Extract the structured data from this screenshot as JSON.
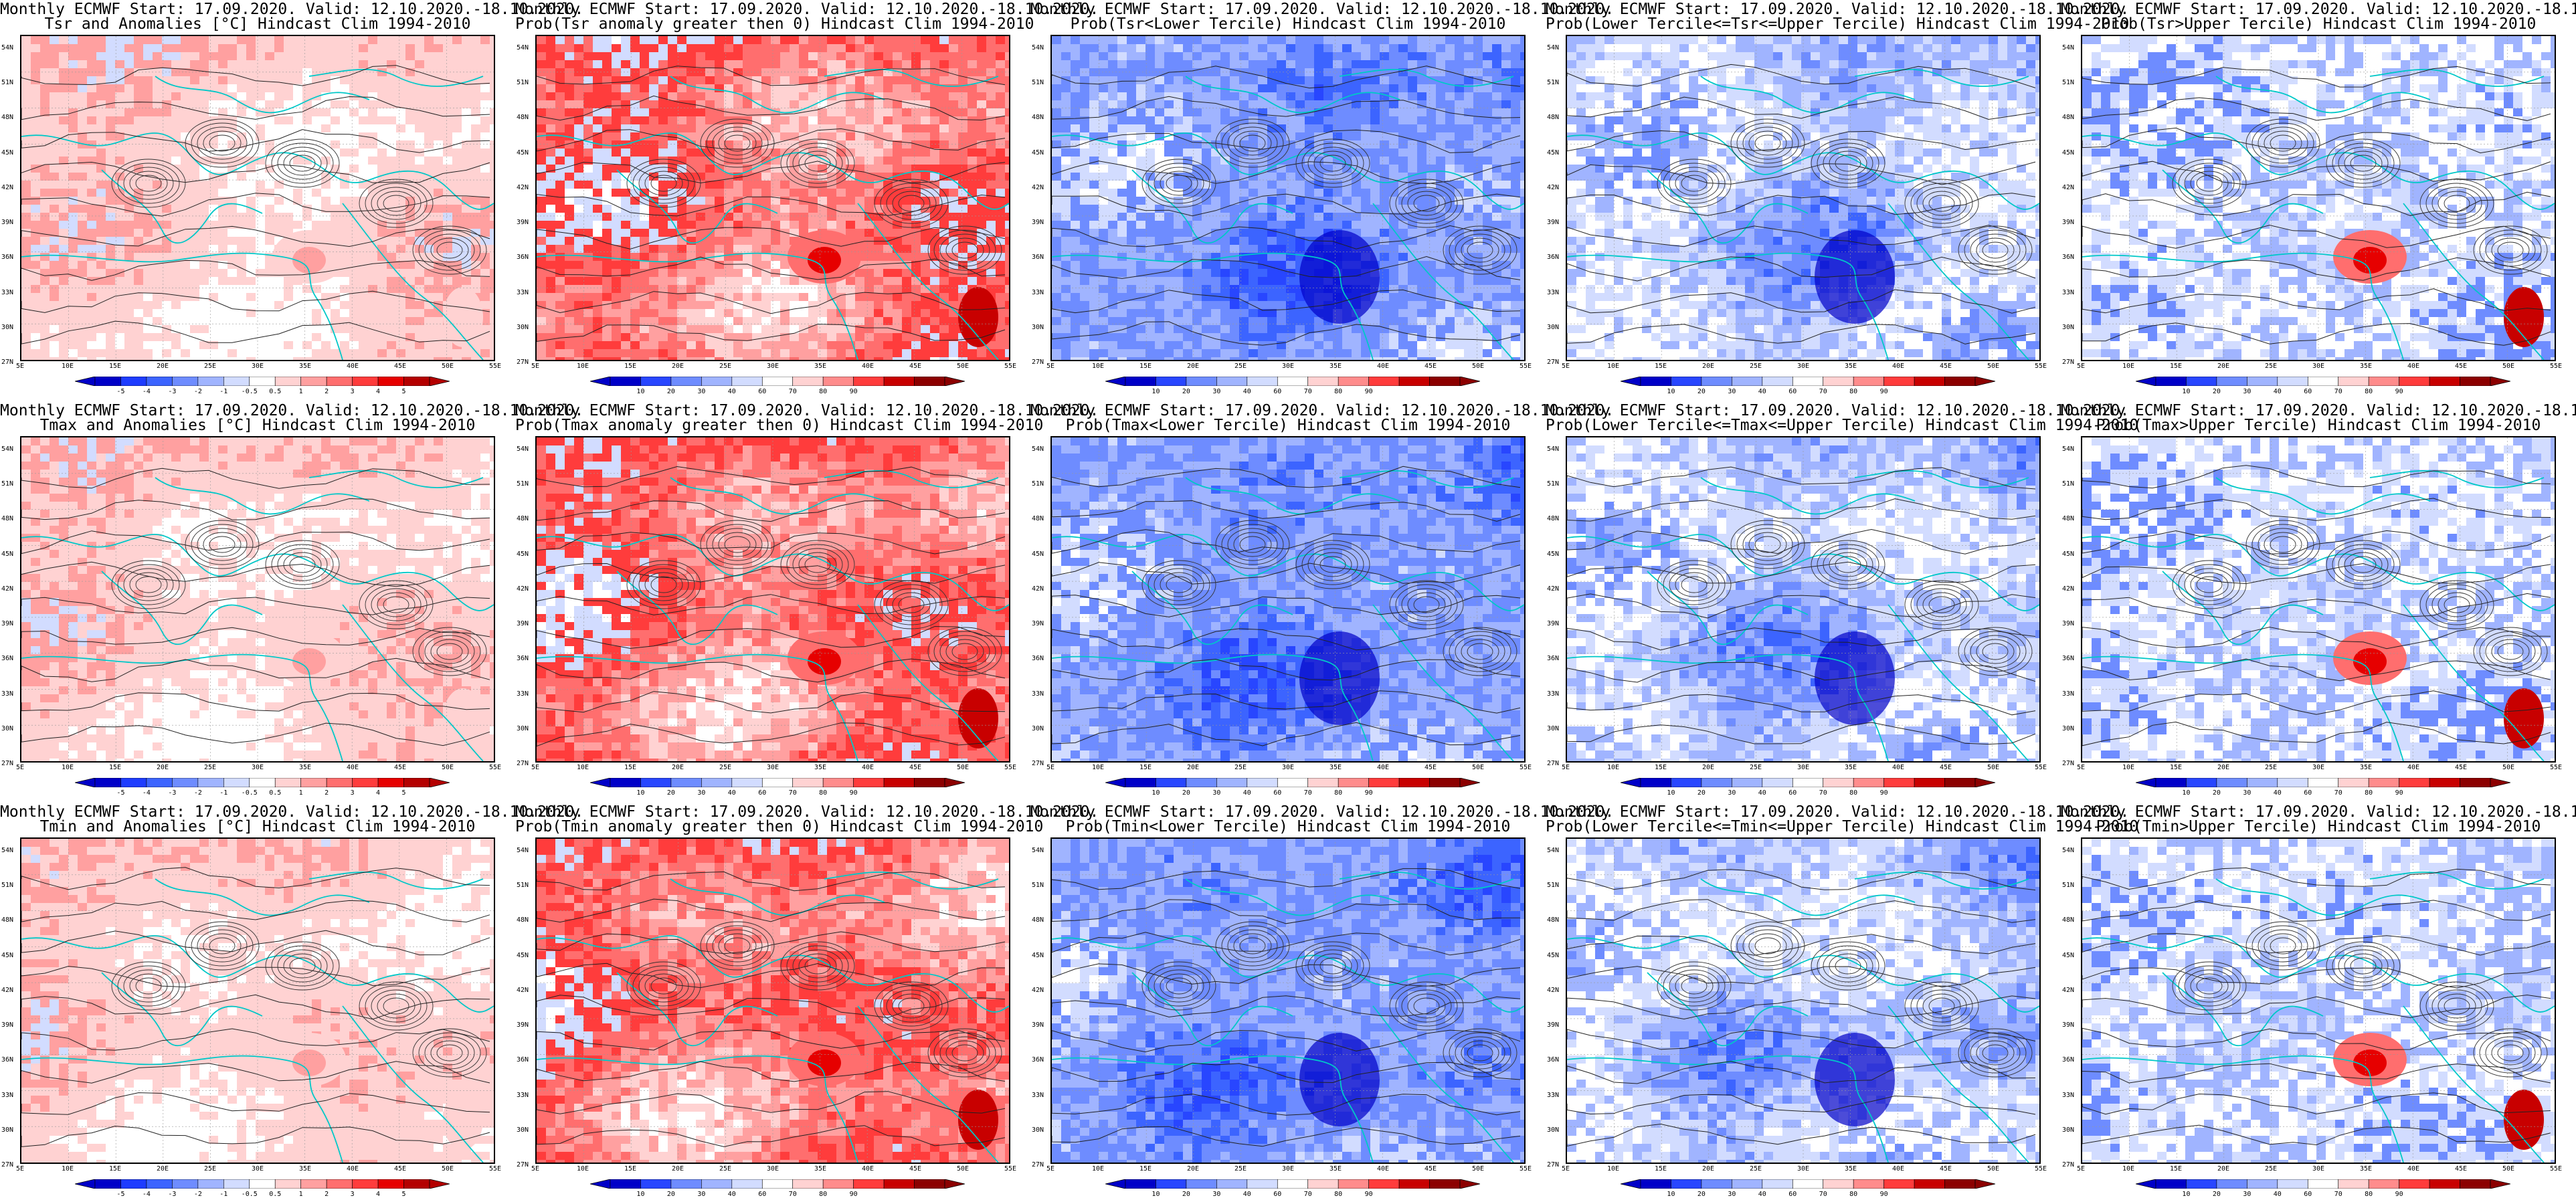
{
  "header_line": "Monthly ECMWF Start: 17.09.2020. Valid: 12.10.2020.-18.10.2020.",
  "lat_labels": [
    "54N",
    "51N",
    "48N",
    "45N",
    "42N",
    "39N",
    "36N",
    "33N",
    "30N",
    "27N"
  ],
  "lon_labels": [
    "5E",
    "10E",
    "15E",
    "20E",
    "25E",
    "30E",
    "35E",
    "40E",
    "45E",
    "50E",
    "55E"
  ],
  "anomaly_colorbar": {
    "labels": [
      "-5",
      "-4",
      "-3",
      "-2",
      "-1",
      "-0.5",
      "0.5",
      "1",
      "2",
      "3",
      "4",
      "5"
    ],
    "colors": [
      "#0000c8",
      "#1e3cff",
      "#3c64ff",
      "#6e8cff",
      "#a0b4ff",
      "#d2dcff",
      "#ffffff",
      "#ffd2d2",
      "#ffa0a0",
      "#ff6e6e",
      "#ff3c3c",
      "#e60000",
      "#b40000"
    ]
  },
  "prob_colorbar": {
    "labels": [
      "10",
      "20",
      "30",
      "40",
      "60",
      "70",
      "80",
      "90"
    ],
    "colors": [
      "#0000c8",
      "#2846ff",
      "#6e8cff",
      "#a0b4ff",
      "#d2dcff",
      "#ffffff",
      "#ffd2d2",
      "#ff8c8c",
      "#ff3c3c",
      "#c80000",
      "#8c0000"
    ]
  },
  "rows": [
    {
      "variable": "Tsr",
      "panels": [
        {
          "title": "Tsr and Anomalies [°C] Hindcast Clim 1994-2010",
          "kind": "anomaly",
          "bias": 0.15
        },
        {
          "title": "Prob(Tsr anomaly greater then 0) Hindcast Clim 1994-2010",
          "kind": "prob-red",
          "bias": 0.45
        },
        {
          "title": "Prob(Tsr<Lower Tercile) Hindcast Clim 1994-2010",
          "kind": "prob-blue",
          "bias": 0.75
        },
        {
          "title": "Prob(Lower Tercile<=Tsr<=Upper Tercile) Hindcast Clim 1994-2010",
          "kind": "prob-blue",
          "bias": 0.55
        },
        {
          "title": "Prob(Tsr>Upper Tercile) Hindcast Clim 1994-2010",
          "kind": "prob-mixed",
          "bias": 0.35
        }
      ]
    },
    {
      "variable": "Tmax",
      "panels": [
        {
          "title": "Tmax and Anomalies [°C] Hindcast Clim 1994-2010",
          "kind": "anomaly",
          "bias": 0.2
        },
        {
          "title": "Prob(Tmax anomaly greater then 0) Hindcast Clim 1994-2010",
          "kind": "prob-red",
          "bias": 0.5
        },
        {
          "title": "Prob(Tmax<Lower Tercile) Hindcast Clim 1994-2010",
          "kind": "prob-blue",
          "bias": 0.75
        },
        {
          "title": "Prob(Lower Tercile<=Tmax<=Upper Tercile) Hindcast Clim 1994-2010",
          "kind": "prob-blue",
          "bias": 0.55
        },
        {
          "title": "Prob(Tmax>Upper Tercile) Hindcast Clim 1994-2010",
          "kind": "prob-mixed",
          "bias": 0.35
        }
      ]
    },
    {
      "variable": "Tmin",
      "panels": [
        {
          "title": "Tmin and Anomalies [°C] Hindcast Clim 1994-2010",
          "kind": "anomaly",
          "bias": 0.1
        },
        {
          "title": "Prob(Tmin anomaly greater then 0) Hindcast Clim 1994-2010",
          "kind": "prob-red",
          "bias": 0.45
        },
        {
          "title": "Prob(Tmin<Lower Tercile) Hindcast Clim 1994-2010",
          "kind": "prob-blue",
          "bias": 0.7
        },
        {
          "title": "Prob(Lower Tercile<=Tmin<=Upper Tercile) Hindcast Clim 1994-2010",
          "kind": "prob-blue",
          "bias": 0.5
        },
        {
          "title": "Prob(Tmin>Upper Tercile) Hindcast Clim 1994-2010",
          "kind": "prob-mixed",
          "bias": 0.35
        }
      ]
    }
  ]
}
